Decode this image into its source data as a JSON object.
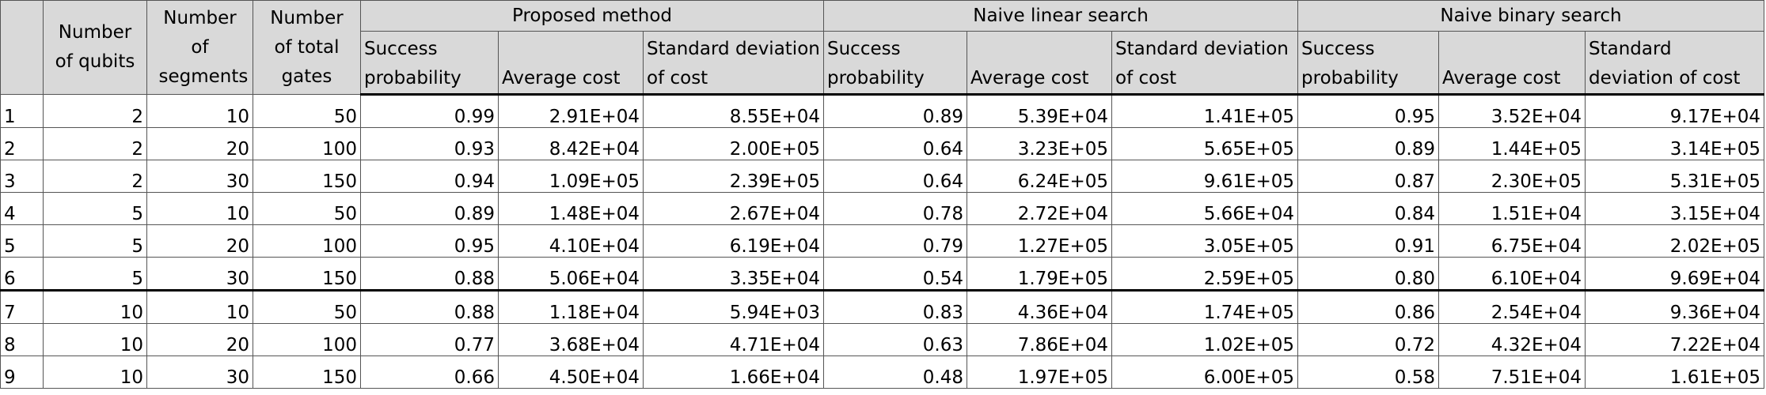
{
  "table": {
    "columns": [
      "Number of qubits",
      "Number of segments",
      "Number of total gates"
    ],
    "groups": [
      {
        "title": "Proposed method",
        "subcolumns": [
          "Success probability",
          "Average cost",
          "Standard deviation of cost"
        ]
      },
      {
        "title": "Naive linear search",
        "subcolumns": [
          "Success probability",
          "Average cost",
          "Standard deviation of cost"
        ]
      },
      {
        "title": "Naive binary search",
        "subcolumns": [
          "Success probability",
          "Average cost",
          "Standard deviation of cost"
        ]
      }
    ],
    "rows": [
      [
        "1",
        "2",
        "10",
        "50",
        "0.99",
        "2.91E+04",
        "8.55E+04",
        "0.89",
        "5.39E+04",
        "1.41E+05",
        "0.95",
        "3.52E+04",
        "9.17E+04"
      ],
      [
        "2",
        "2",
        "20",
        "100",
        "0.93",
        "8.42E+04",
        "2.00E+05",
        "0.64",
        "3.23E+05",
        "5.65E+05",
        "0.89",
        "1.44E+05",
        "3.14E+05"
      ],
      [
        "3",
        "2",
        "30",
        "150",
        "0.94",
        "1.09E+05",
        "2.39E+05",
        "0.64",
        "6.24E+05",
        "9.61E+05",
        "0.87",
        "2.30E+05",
        "5.31E+05"
      ],
      [
        "4",
        "5",
        "10",
        "50",
        "0.89",
        "1.48E+04",
        "2.67E+04",
        "0.78",
        "2.72E+04",
        "5.66E+04",
        "0.84",
        "1.51E+04",
        "3.15E+04"
      ],
      [
        "5",
        "5",
        "20",
        "100",
        "0.95",
        "4.10E+04",
        "6.19E+04",
        "0.79",
        "1.27E+05",
        "3.05E+05",
        "0.91",
        "6.75E+04",
        "2.02E+05"
      ],
      [
        "6",
        "5",
        "30",
        "150",
        "0.88",
        "5.06E+04",
        "3.35E+04",
        "0.54",
        "1.79E+05",
        "2.59E+05",
        "0.80",
        "6.10E+04",
        "9.69E+04"
      ],
      [
        "7",
        "10",
        "10",
        "50",
        "0.88",
        "1.18E+04",
        "5.94E+03",
        "0.83",
        "4.36E+04",
        "1.74E+05",
        "0.86",
        "2.54E+04",
        "9.36E+04"
      ],
      [
        "8",
        "10",
        "20",
        "100",
        "0.77",
        "3.68E+04",
        "4.71E+04",
        "0.63",
        "7.86E+04",
        "1.02E+05",
        "0.72",
        "4.32E+04",
        "7.22E+04"
      ],
      [
        "9",
        "10",
        "30",
        "150",
        "0.66",
        "4.50E+04",
        "1.66E+04",
        "0.48",
        "1.97E+05",
        "6.00E+05",
        "0.58",
        "7.51E+04",
        "1.61E+05"
      ]
    ]
  }
}
